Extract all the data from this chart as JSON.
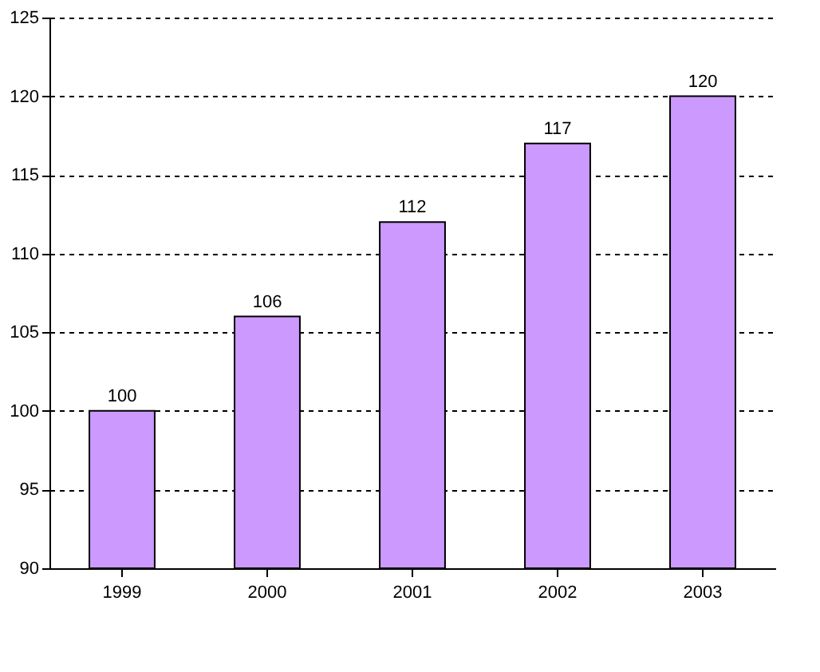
{
  "chart_data": {
    "type": "bar",
    "categories": [
      "1999",
      "2000",
      "2001",
      "2002",
      "2003"
    ],
    "values": [
      100,
      106,
      112,
      117,
      120
    ],
    "color": "#cc99ff",
    "ylim": [
      90,
      125
    ],
    "yticks": [
      90,
      95,
      100,
      105,
      110,
      115,
      120,
      125
    ],
    "grid": "y",
    "data_labels": true
  }
}
